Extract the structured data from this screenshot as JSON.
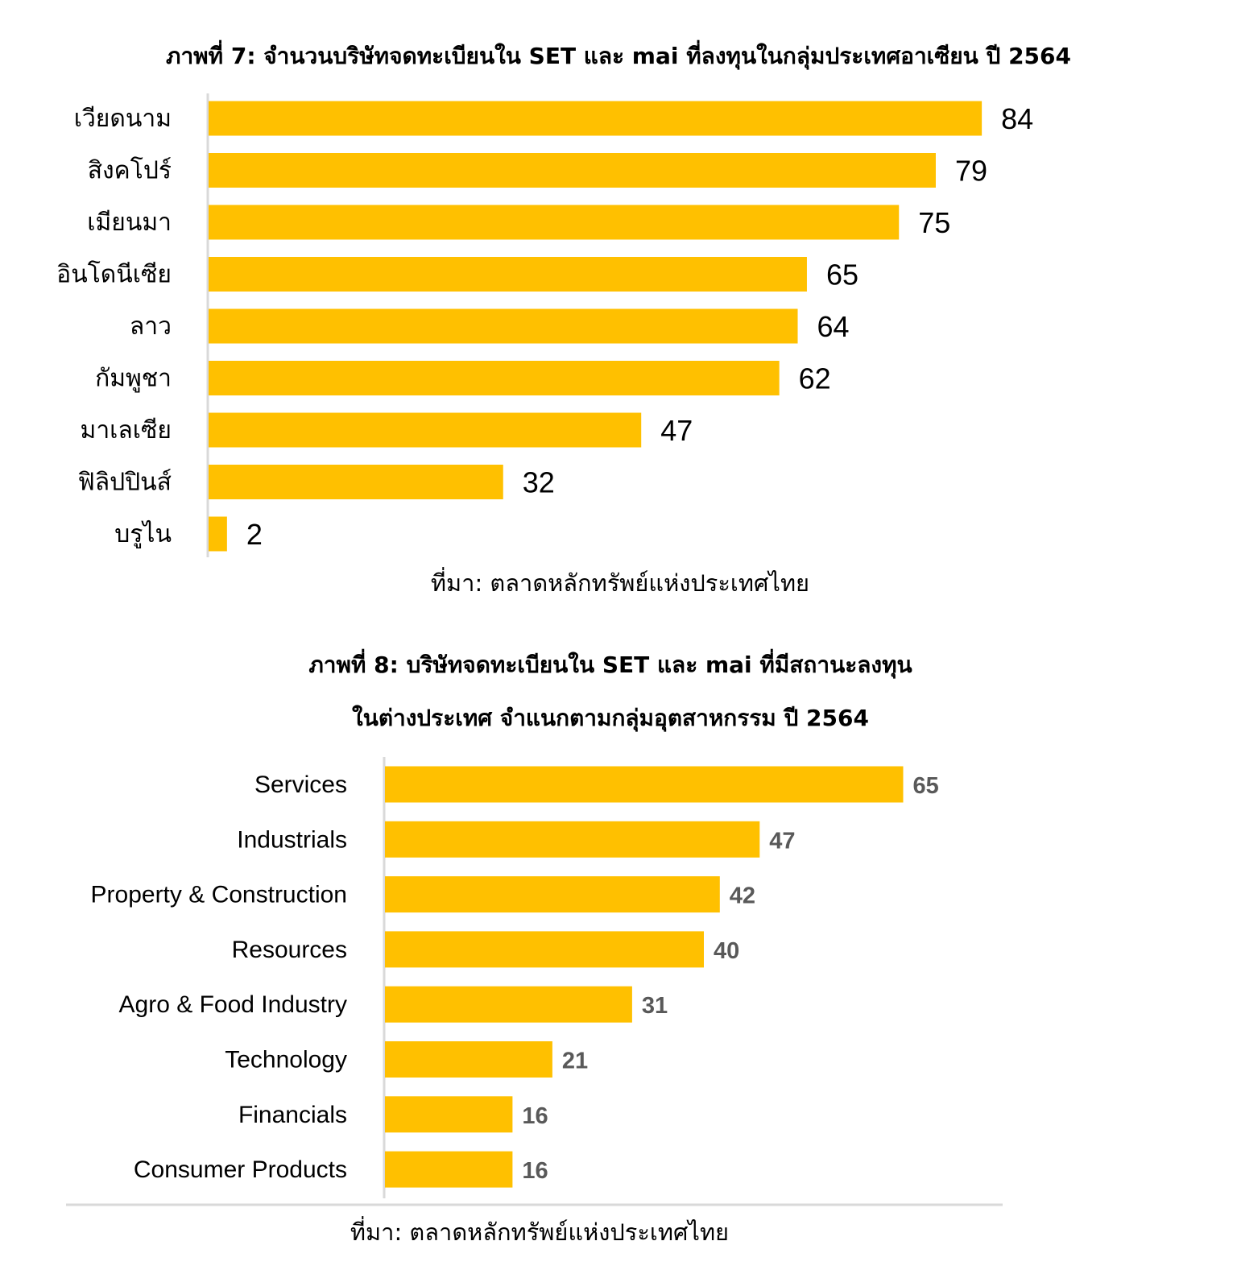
{
  "colors": {
    "bar": "#FFC000",
    "axis": "#d9d9d9",
    "value_label_chart2": "#595959"
  },
  "chart_data": [
    {
      "type": "bar",
      "orientation": "horizontal",
      "title": "ภาพที่ 7: จำนวนบริษัทจดทะเบียนใน SET และ mai  ที่ลงทุนในกลุ่มประเทศอาเซียน ปี 2564",
      "categories": [
        "เวียดนาม",
        "สิงคโปร์",
        "เมียนมา",
        "อินโดนีเซีย",
        "ลาว",
        "กัมพูชา",
        "มาเลเซีย",
        "ฟิลิปปินส์",
        "บรูไน"
      ],
      "values": [
        84,
        79,
        75,
        65,
        64,
        62,
        47,
        32,
        2
      ],
      "xlim": [
        0,
        84
      ],
      "grid": false,
      "source": "ที่มา: ตลาดหลักทรัพย์แห่งประเทศไทย"
    },
    {
      "type": "bar",
      "orientation": "horizontal",
      "title_lines": [
        "ภาพที่ 8: บริษัทจดทะเบียนใน SET และ mai ที่มีสถานะลงทุน",
        "ในต่างประเทศ จำแนกตามกลุ่มอุตสาหกรรม ปี 2564"
      ],
      "categories": [
        "Services",
        "Industrials",
        "Property & Construction",
        "Resources",
        "Agro & Food Industry",
        "Technology",
        "Financials",
        "Consumer Products"
      ],
      "values": [
        65,
        47,
        42,
        40,
        31,
        21,
        16,
        16
      ],
      "xlim": [
        0,
        65
      ],
      "grid": false,
      "source": "ที่มา: ตลาดหลักทรัพย์แห่งประเทศไทย"
    }
  ]
}
